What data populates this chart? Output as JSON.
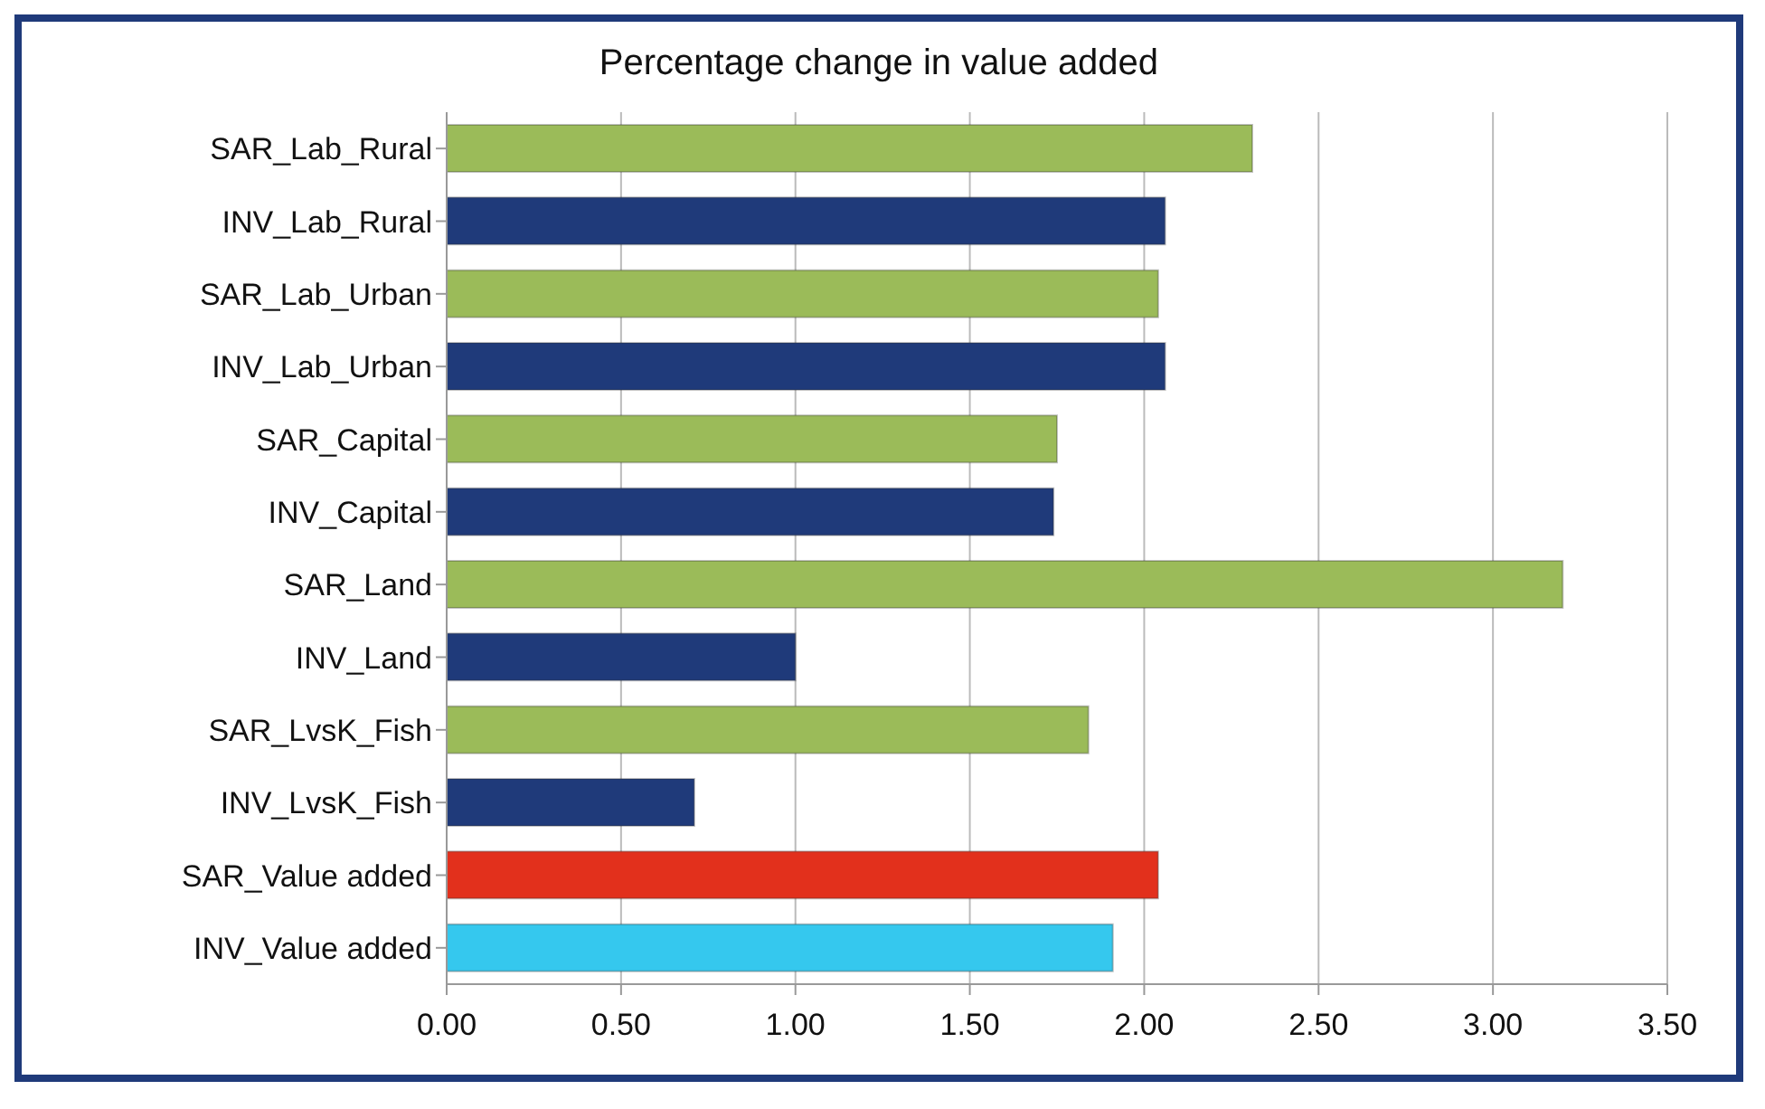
{
  "chart_data": {
    "type": "bar",
    "orientation": "horizontal",
    "title": "Percentage change in value added",
    "categories": [
      "SAR_Lab_Rural",
      "INV_Lab_Rural",
      "SAR_Lab_Urban",
      "INV_Lab_Urban",
      "SAR_Capital",
      "INV_Capital",
      "SAR_Land",
      "INV_Land",
      "SAR_LvsK_Fish",
      "INV_LvsK_Fish",
      "SAR_Value added",
      "INV_Value added"
    ],
    "values": [
      2.31,
      2.06,
      2.04,
      2.06,
      1.75,
      1.74,
      3.2,
      1.0,
      1.84,
      0.71,
      2.04,
      1.91
    ],
    "colors": [
      "#9bbb59",
      "#1f3a7a",
      "#9bbb59",
      "#1f3a7a",
      "#9bbb59",
      "#1f3a7a",
      "#9bbb59",
      "#1f3a7a",
      "#9bbb59",
      "#1f3a7a",
      "#e2301c",
      "#35c8ee"
    ],
    "xlim": [
      0,
      3.5
    ],
    "xticks": [
      {
        "value": 0,
        "label": "0.00"
      },
      {
        "value": 0.5,
        "label": "0.50"
      },
      {
        "value": 1,
        "label": "1.00"
      },
      {
        "value": 1.5,
        "label": "1.50"
      },
      {
        "value": 2,
        "label": "2.00"
      },
      {
        "value": 2.5,
        "label": "2.50"
      },
      {
        "value": 3,
        "label": "3.00"
      },
      {
        "value": 3.5,
        "label": "3.50"
      }
    ],
    "grid": "x",
    "legend": false
  }
}
